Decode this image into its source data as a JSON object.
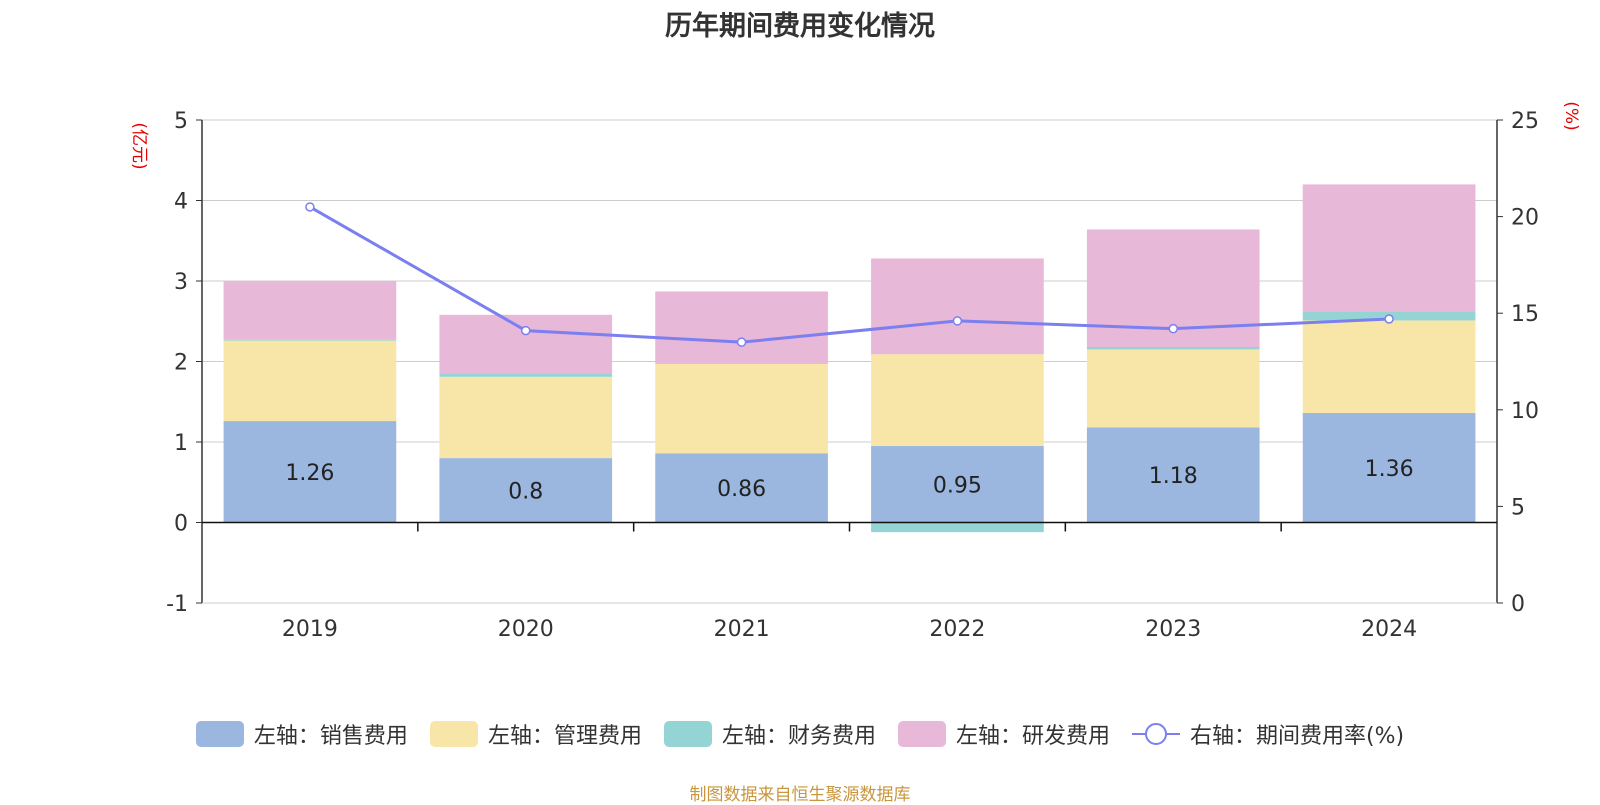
{
  "chart_data": {
    "type": "bar",
    "title": "历年期间费用变化情况",
    "categories": [
      "2019",
      "2020",
      "2021",
      "2022",
      "2023",
      "2024"
    ],
    "stacked": true,
    "series": [
      {
        "name": "左轴：销售费用",
        "axis": "left",
        "color": "#9bb7e0",
        "values": [
          1.26,
          0.8,
          0.86,
          0.95,
          1.18,
          1.36
        ],
        "labels": [
          "1.26",
          "0.8",
          "0.86",
          "0.95",
          "1.18",
          "1.36"
        ]
      },
      {
        "name": "左轴：管理费用",
        "axis": "left",
        "color": "#f8e6a8",
        "values": [
          1.0,
          1.01,
          1.11,
          1.14,
          0.97,
          1.15
        ]
      },
      {
        "name": "左轴：财务费用",
        "axis": "left",
        "color": "#94d4d4",
        "values": [
          0.01,
          0.04,
          0.01,
          -0.12,
          0.03,
          0.11
        ]
      },
      {
        "name": "左轴：研发费用",
        "axis": "left",
        "color": "#e8b8d8",
        "values": [
          0.73,
          0.73,
          0.89,
          1.19,
          1.46,
          1.58
        ]
      }
    ],
    "line_series": {
      "name": "右轴：期间费用率(%)",
      "axis": "right",
      "color": "#7b7fef",
      "values": [
        20.5,
        14.1,
        13.5,
        14.6,
        14.2,
        14.7
      ]
    },
    "left_axis": {
      "unit": "(亿元)",
      "ylim": [
        -1,
        5
      ],
      "ticks": [
        "-1",
        "0",
        "1",
        "2",
        "3",
        "4",
        "5"
      ]
    },
    "right_axis": {
      "unit": "(%)",
      "ylim": [
        0,
        25
      ],
      "ticks": [
        "0",
        "5",
        "10",
        "15",
        "20",
        "25"
      ]
    },
    "grid": true,
    "legend_position": "bottom"
  },
  "source_note": "制图数据来自恒生聚源数据库"
}
